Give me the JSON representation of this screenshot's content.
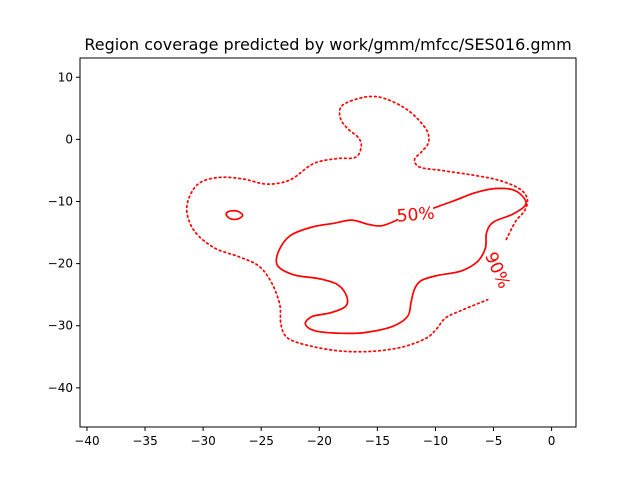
{
  "chart_data": {
    "type": "contour",
    "title": "Region coverage predicted by work/gmm/mfcc/SES016.gmm",
    "xlabel": "",
    "ylabel": "",
    "xlim": [
      -40.6,
      2.1
    ],
    "ylim": [
      -46.3,
      13.1
    ],
    "x_ticks": [
      -40,
      -35,
      -30,
      -25,
      -20,
      -15,
      -10,
      -5,
      0
    ],
    "y_ticks": [
      10,
      0,
      -10,
      -20,
      -30,
      -40
    ],
    "x_tick_labels": [
      "−40",
      "−35",
      "−30",
      "−25",
      "−20",
      "−15",
      "−10",
      "−5",
      "0"
    ],
    "y_tick_labels": [
      "10",
      "0",
      "−10",
      "−20",
      "−30",
      "−40"
    ],
    "grid": false,
    "color": "#ff0000",
    "contours": [
      {
        "label": "50%",
        "style": "solid",
        "label_at": [
          -11.7,
          -12.2
        ],
        "label_rotation": 5,
        "paths": [
          {
            "closed": false,
            "points": [
              [
                -10.2,
                -11.1
              ],
              [
                -8.3,
                -9.8
              ],
              [
                -6.6,
                -8.6
              ],
              [
                -4.8,
                -7.9
              ],
              [
                -3.1,
                -8.3
              ],
              [
                -2.2,
                -10.3
              ],
              [
                -3.3,
                -12.0
              ],
              [
                -5.0,
                -13.3
              ],
              [
                -5.6,
                -15.0
              ],
              [
                -5.7,
                -17.5
              ],
              [
                -6.4,
                -19.7
              ],
              [
                -7.8,
                -21.2
              ],
              [
                -9.8,
                -21.9
              ],
              [
                -11.2,
                -22.7
              ],
              [
                -11.8,
                -24.1
              ],
              [
                -12.1,
                -26.2
              ],
              [
                -12.4,
                -28.5
              ],
              [
                -13.7,
                -30.1
              ],
              [
                -16.1,
                -31.1
              ],
              [
                -18.4,
                -31.2
              ],
              [
                -20.4,
                -30.8
              ],
              [
                -21.2,
                -29.7
              ],
              [
                -20.6,
                -28.5
              ],
              [
                -19.0,
                -27.9
              ],
              [
                -17.7,
                -26.8
              ],
              [
                -17.7,
                -25.0
              ],
              [
                -18.5,
                -23.3
              ],
              [
                -20.1,
                -22.4
              ],
              [
                -22.2,
                -21.8
              ],
              [
                -23.6,
                -20.3
              ],
              [
                -23.5,
                -18.0
              ],
              [
                -22.5,
                -15.5
              ],
              [
                -20.6,
                -14.1
              ],
              [
                -18.7,
                -13.5
              ],
              [
                -17.2,
                -13.0
              ],
              [
                -15.7,
                -13.7
              ],
              [
                -14.6,
                -13.9
              ],
              [
                -13.2,
                -12.9
              ]
            ]
          },
          {
            "closed": true,
            "points": [
              [
                -27.5,
                -11.5
              ],
              [
                -27.0,
                -11.6
              ],
              [
                -26.6,
                -12.2
              ],
              [
                -27.0,
                -12.8
              ],
              [
                -27.6,
                -12.8
              ],
              [
                -28.0,
                -12.2
              ],
              [
                -27.9,
                -11.7
              ]
            ]
          }
        ]
      },
      {
        "label": "90%",
        "style": "dotted",
        "label_at": [
          -4.7,
          -21.1
        ],
        "label_rotation": -66,
        "paths": [
          {
            "closed": false,
            "points": [
              [
                -3.9,
                -16.1
              ],
              [
                -3.1,
                -13.2
              ],
              [
                -2.3,
                -11.4
              ],
              [
                -2.1,
                -9.5
              ],
              [
                -2.8,
                -7.9
              ],
              [
                -4.5,
                -6.6
              ],
              [
                -6.6,
                -5.8
              ],
              [
                -9.5,
                -5.0
              ],
              [
                -11.3,
                -4.5
              ],
              [
                -11.8,
                -3.3
              ],
              [
                -11.2,
                -2.0
              ],
              [
                -10.6,
                -0.5
              ],
              [
                -10.8,
                1.6
              ],
              [
                -12.3,
                4.6
              ],
              [
                -14.4,
                6.6
              ],
              [
                -16.1,
                6.8
              ],
              [
                -18.0,
                5.5
              ],
              [
                -18.2,
                3.5
              ],
              [
                -17.6,
                1.8
              ],
              [
                -16.6,
                0.2
              ],
              [
                -16.4,
                -1.3
              ],
              [
                -16.9,
                -2.9
              ],
              [
                -18.5,
                -3.1
              ],
              [
                -20.5,
                -3.9
              ],
              [
                -22.5,
                -6.5
              ],
              [
                -24.5,
                -7.2
              ],
              [
                -26.5,
                -6.4
              ],
              [
                -28.5,
                -6.1
              ],
              [
                -30.2,
                -6.9
              ],
              [
                -31.1,
                -8.9
              ],
              [
                -31.4,
                -11.7
              ],
              [
                -30.7,
                -14.9
              ],
              [
                -29.0,
                -17.5
              ],
              [
                -26.9,
                -18.9
              ],
              [
                -25.2,
                -20.4
              ],
              [
                -24.1,
                -23.1
              ],
              [
                -23.4,
                -26.6
              ],
              [
                -23.3,
                -29.8
              ],
              [
                -22.7,
                -32.0
              ],
              [
                -20.7,
                -33.3
              ],
              [
                -18.0,
                -34.1
              ],
              [
                -15.3,
                -34.1
              ],
              [
                -12.8,
                -33.4
              ],
              [
                -10.8,
                -32.0
              ],
              [
                -9.9,
                -30.5
              ],
              [
                -9.1,
                -28.7
              ],
              [
                -7.6,
                -27.4
              ],
              [
                -5.5,
                -25.8
              ]
            ]
          }
        ]
      }
    ]
  }
}
